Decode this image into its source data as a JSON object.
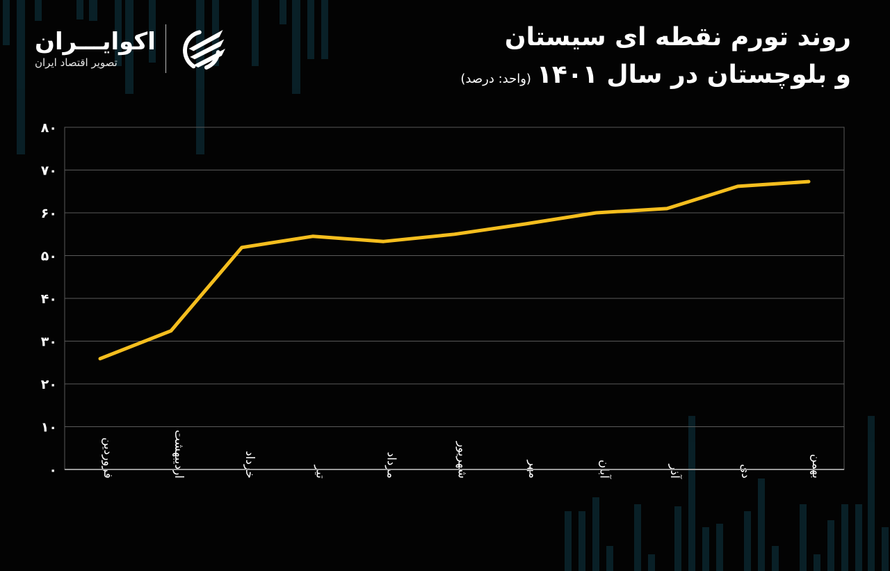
{
  "header": {
    "title_line1": "روند تورم نقطه ای سیستان",
    "title_line2": "و بلوچستان در سال ۱۴۰۱",
    "unit_label": "(واحد: درصد)"
  },
  "logo": {
    "name": "اکوایـــران",
    "tagline": "تصویر اقتصاد ایران",
    "icon": "ecoiran-logo-icon"
  },
  "colors": {
    "background": "#030303",
    "line": "#f5be1e",
    "grid": "#5a5a5a",
    "text": "#ffffff",
    "decor_bars": "#0c2a33"
  },
  "chart_data": {
    "type": "line",
    "title": "روند تورم نقطه ای سیستان و بلوچستان در سال ۱۴۰۱ (واحد: درصد)",
    "xlabel": "",
    "ylabel": "",
    "categories": [
      "فروردین",
      "اردیبهشت",
      "خرداد",
      "تیر",
      "مرداد",
      "شهریور",
      "مهر",
      "آبان",
      "آذر",
      "دی",
      "بهمن"
    ],
    "series": [
      {
        "name": "تورم نقطه ای",
        "values": [
          25.9,
          32.4,
          51.9,
          54.5,
          53.3,
          55.0,
          57.4,
          60.0,
          61.0,
          66.2,
          67.3
        ]
      }
    ],
    "ylim": [
      0,
      80
    ],
    "yticks": [
      0,
      10,
      20,
      30,
      40,
      50,
      60,
      70,
      80
    ],
    "ytick_labels": [
      "۰",
      "۱۰",
      "۲۰",
      "۳۰",
      "۴۰",
      "۵۰",
      "۶۰",
      "۷۰",
      "۸۰"
    ],
    "grid": true,
    "legend": "none"
  }
}
